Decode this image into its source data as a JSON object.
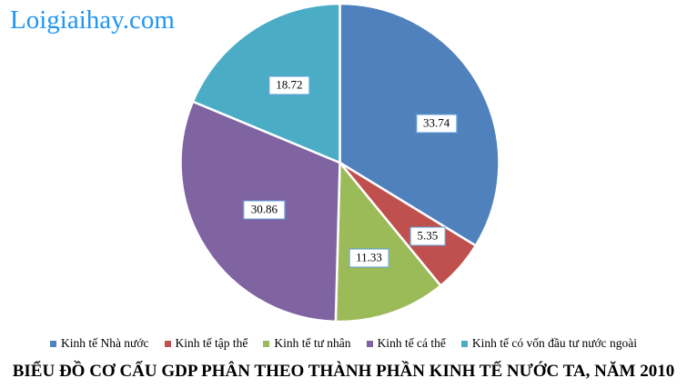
{
  "watermark": {
    "text": "Loigiaihay.com",
    "color": "#2196F3"
  },
  "chart_data": {
    "type": "pie",
    "title": "BIỂU ĐỒ CƠ CẤU GDP PHÂN THEO THÀNH PHẦN KINH TẾ NƯỚC TA, NĂM 2010",
    "unit": "%",
    "start_angle_deg": 0,
    "direction": "clockwise",
    "legend_position": "bottom",
    "label_box_border": "#5B9BD5",
    "slice_divider_color": "#FFFFFF",
    "slices": [
      {
        "label": "Kinh tế Nhà nước",
        "value": 33.74,
        "color": "#4F81BD"
      },
      {
        "label": "Kinh tế tập thể",
        "value": 5.35,
        "color": "#C0504D"
      },
      {
        "label": "Kinh tế tư nhân",
        "value": 11.33,
        "color": "#9BBB59"
      },
      {
        "label": "Kinh tế cá thể",
        "value": 30.86,
        "color": "#8064A2"
      },
      {
        "label": "Kinh tế có vốn đầu tư nước ngoài",
        "value": 18.72,
        "color": "#4BACC6"
      }
    ],
    "data_labels": [
      "33.74",
      "5.35",
      "11.33",
      "30.86",
      "18.72"
    ]
  }
}
